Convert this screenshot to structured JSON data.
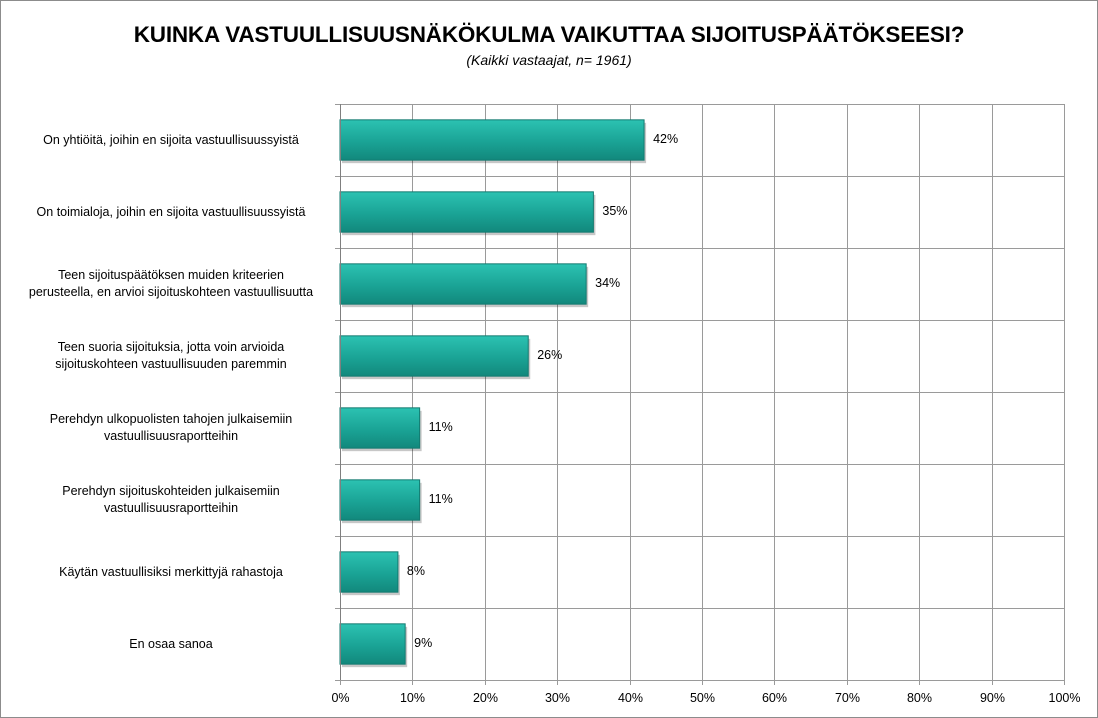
{
  "chart_data": {
    "type": "bar",
    "orientation": "horizontal",
    "title": "KUINKA VASTUULLISUUSNÄKÖKULMA VAIKUTTAA SIJOITUSPÄÄTÖKSEESI?",
    "subtitle": "(Kaikki vastaajat, n= 1961)",
    "categories": [
      "On yhtiöitä, joihin en sijoita vastuullisuussyistä",
      "On toimialoja, joihin en sijoita vastuullisuussyistä",
      "Teen sijoituspäätöksen muiden kriteerien\nperusteella, en arvioi sijoituskohteen vastuullisuutta",
      "Teen suoria sijoituksia, jotta voin arvioida\nsijoituskohteen vastuullisuuden paremmin",
      "Perehdyn ulkopuolisten tahojen julkaisemiin\nvastuullisuusraportteihin",
      "Perehdyn sijoituskohteiden julkaisemiin\nvastuullisuusraportteihin",
      "Käytän vastuullisiksi merkittyjä rahastoja",
      "En osaa sanoa"
    ],
    "values": [
      42,
      35,
      34,
      26,
      11,
      11,
      8,
      9
    ],
    "data_labels": [
      "42%",
      "35%",
      "34%",
      "26%",
      "11%",
      "11%",
      "8%",
      "9%"
    ],
    "xlim": [
      0,
      100
    ],
    "x_ticks": [
      "0%",
      "10%",
      "20%",
      "30%",
      "40%",
      "50%",
      "60%",
      "70%",
      "80%",
      "90%",
      "100%"
    ],
    "grid": true,
    "bar_color": "#1fa89a",
    "bar_edge_color": "#127a70"
  }
}
